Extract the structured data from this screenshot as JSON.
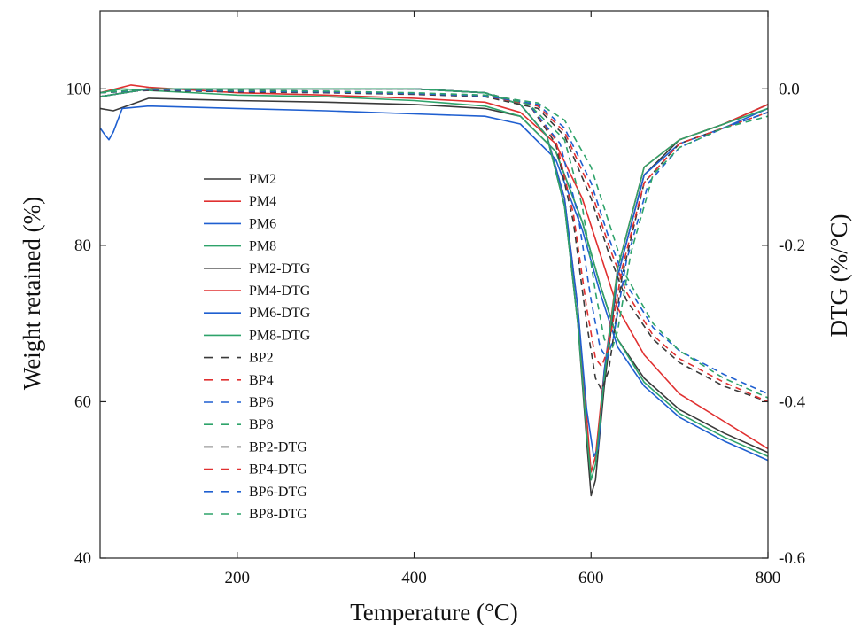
{
  "chart_data": {
    "type": "line",
    "title": "",
    "xlabel": "Temperature (°C)",
    "ylabel_left": "Weight retained (%)",
    "ylabel_right": "DTG (%/°C)",
    "xlim": [
      45,
      800
    ],
    "ylim_left": [
      40,
      110
    ],
    "ylim_right": [
      -0.6,
      0.1
    ],
    "x_ticks": [
      200,
      400,
      600,
      800
    ],
    "y_ticks_left": [
      40,
      60,
      80,
      100
    ],
    "y_ticks_right": [
      -0.6,
      -0.4,
      -0.2,
      0.0
    ],
    "y_tick_labels_right": [
      "-0.6",
      "-0.4",
      "-0.2",
      "0.0"
    ],
    "grid": false,
    "legend_position": "center-left",
    "colors": {
      "PM2": "#3a3a3a",
      "PM4": "#e03030",
      "PM6": "#1f5fd0",
      "PM8": "#2ea36a",
      "BP2": "#3a3a3a",
      "BP4": "#e03030",
      "BP6": "#1f5fd0",
      "BP8": "#2ea36a"
    },
    "series": [
      {
        "name": "PM2",
        "axis": "left",
        "style": "solid",
        "color_key": "PM2",
        "x": [
          45,
          60,
          100,
          200,
          300,
          400,
          480,
          520,
          560,
          590,
          610,
          630,
          660,
          700,
          750,
          800
        ],
        "y": [
          97.5,
          97.2,
          98.8,
          98.5,
          98.3,
          98.0,
          97.5,
          96.5,
          92,
          83,
          75,
          68,
          63,
          59,
          56,
          53.5
        ]
      },
      {
        "name": "PM4",
        "axis": "left",
        "style": "solid",
        "color_key": "PM4",
        "x": [
          45,
          80,
          100,
          200,
          300,
          400,
          480,
          520,
          560,
          590,
          610,
          630,
          660,
          700,
          750,
          800
        ],
        "y": [
          99.5,
          100.5,
          100.2,
          99.5,
          99.2,
          98.8,
          98.3,
          97,
          93,
          86,
          79,
          72,
          66,
          61,
          57.5,
          54
        ]
      },
      {
        "name": "PM6",
        "axis": "left",
        "style": "solid",
        "color_key": "PM6",
        "x": [
          45,
          50,
          55,
          60,
          70,
          100,
          200,
          300,
          400,
          480,
          520,
          560,
          590,
          610,
          630,
          660,
          700,
          750,
          800
        ],
        "y": [
          95,
          94.2,
          93.5,
          94.5,
          97.5,
          97.8,
          97.5,
          97.2,
          96.8,
          96.5,
          95.5,
          91,
          82,
          74,
          67,
          62,
          58,
          55,
          52.5
        ]
      },
      {
        "name": "PM8",
        "axis": "left",
        "style": "solid",
        "color_key": "PM8",
        "x": [
          45,
          70,
          100,
          200,
          300,
          400,
          480,
          520,
          560,
          590,
          610,
          630,
          660,
          700,
          750,
          800
        ],
        "y": [
          99.5,
          100,
          99.8,
          99.2,
          99.0,
          98.5,
          97.8,
          96.5,
          92,
          83,
          75,
          68,
          62.5,
          58.5,
          55.5,
          53
        ]
      },
      {
        "name": "PM2-DTG",
        "axis": "right",
        "style": "solid",
        "color_key": "PM2",
        "x": [
          45,
          100,
          200,
          300,
          400,
          480,
          520,
          550,
          570,
          585,
          595,
          600,
          605,
          615,
          630,
          660,
          700,
          750,
          800
        ],
        "y": [
          -0.01,
          0.0,
          0.0,
          0.0,
          0.0,
          -0.005,
          -0.02,
          -0.06,
          -0.15,
          -0.3,
          -0.45,
          -0.52,
          -0.5,
          -0.38,
          -0.24,
          -0.11,
          -0.065,
          -0.045,
          -0.02
        ]
      },
      {
        "name": "PM4-DTG",
        "axis": "right",
        "style": "solid",
        "color_key": "PM4",
        "x": [
          45,
          100,
          200,
          300,
          400,
          480,
          520,
          550,
          570,
          585,
          595,
          600,
          605,
          615,
          630,
          660,
          700,
          750,
          800
        ],
        "y": [
          -0.01,
          0.0,
          0.0,
          0.0,
          0.0,
          -0.005,
          -0.02,
          -0.06,
          -0.14,
          -0.28,
          -0.42,
          -0.49,
          -0.47,
          -0.36,
          -0.23,
          -0.1,
          -0.065,
          -0.045,
          -0.02
        ]
      },
      {
        "name": "PM6-DTG",
        "axis": "right",
        "style": "solid",
        "color_key": "PM6",
        "x": [
          45,
          100,
          200,
          300,
          400,
          480,
          520,
          550,
          570,
          585,
          595,
          603,
          608,
          615,
          630,
          660,
          700,
          750,
          800
        ],
        "y": [
          -0.01,
          0.0,
          0.0,
          0.0,
          0.0,
          -0.005,
          -0.02,
          -0.06,
          -0.14,
          -0.28,
          -0.41,
          -0.47,
          -0.46,
          -0.36,
          -0.24,
          -0.11,
          -0.07,
          -0.05,
          -0.025
        ]
      },
      {
        "name": "PM8-DTG",
        "axis": "right",
        "style": "solid",
        "color_key": "PM8",
        "x": [
          45,
          100,
          200,
          300,
          400,
          480,
          520,
          550,
          570,
          585,
          595,
          600,
          605,
          615,
          630,
          660,
          700,
          750,
          800
        ],
        "y": [
          -0.01,
          0.0,
          0.0,
          0.0,
          0.0,
          -0.005,
          -0.02,
          -0.06,
          -0.15,
          -0.3,
          -0.44,
          -0.5,
          -0.48,
          -0.37,
          -0.23,
          -0.1,
          -0.065,
          -0.045,
          -0.025
        ]
      },
      {
        "name": "BP2",
        "axis": "left",
        "style": "dashed",
        "color_key": "BP2",
        "x": [
          45,
          100,
          200,
          300,
          400,
          480,
          540,
          570,
          600,
          620,
          640,
          670,
          700,
          750,
          800
        ],
        "y": [
          99.5,
          99.8,
          99.6,
          99.5,
          99.3,
          99.0,
          97.5,
          94,
          86,
          79,
          73,
          68,
          65,
          62,
          60
        ]
      },
      {
        "name": "BP4",
        "axis": "left",
        "style": "dashed",
        "color_key": "BP4",
        "x": [
          45,
          100,
          200,
          300,
          400,
          480,
          540,
          570,
          600,
          620,
          640,
          670,
          700,
          750,
          800
        ],
        "y": [
          99.5,
          99.9,
          99.7,
          99.6,
          99.4,
          99.1,
          97.8,
          94.5,
          87,
          80,
          74,
          68.5,
          65.5,
          62.5,
          60
        ]
      },
      {
        "name": "BP6",
        "axis": "left",
        "style": "dashed",
        "color_key": "BP6",
        "x": [
          45,
          100,
          200,
          300,
          400,
          480,
          540,
          570,
          600,
          620,
          640,
          670,
          700,
          750,
          800
        ],
        "y": [
          99.5,
          99.9,
          99.7,
          99.6,
          99.4,
          99.1,
          98,
          95,
          88,
          81,
          75,
          69.5,
          66.5,
          63.5,
          61
        ]
      },
      {
        "name": "BP8",
        "axis": "left",
        "style": "dashed",
        "color_key": "BP8",
        "x": [
          45,
          100,
          200,
          300,
          400,
          480,
          540,
          570,
          600,
          620,
          640,
          670,
          700,
          750,
          800
        ],
        "y": [
          99.5,
          100,
          99.8,
          99.7,
          99.5,
          99.2,
          98.2,
          96,
          90,
          83,
          76,
          70,
          66.5,
          63,
          60.5
        ]
      },
      {
        "name": "BP2-DTG",
        "axis": "right",
        "style": "dashed",
        "color_key": "BP2",
        "x": [
          45,
          100,
          200,
          300,
          400,
          480,
          530,
          560,
          580,
          595,
          605,
          612,
          620,
          635,
          660,
          700,
          750,
          800
        ],
        "y": [
          -0.01,
          0.0,
          0.0,
          0.0,
          0.0,
          -0.005,
          -0.02,
          -0.07,
          -0.17,
          -0.3,
          -0.37,
          -0.385,
          -0.36,
          -0.24,
          -0.12,
          -0.07,
          -0.05,
          -0.03
        ]
      },
      {
        "name": "BP4-DTG",
        "axis": "right",
        "style": "dashed",
        "color_key": "BP4",
        "x": [
          45,
          100,
          200,
          300,
          400,
          480,
          530,
          560,
          580,
          595,
          605,
          612,
          620,
          635,
          660,
          700,
          750,
          800
        ],
        "y": [
          -0.01,
          0.0,
          0.0,
          0.0,
          0.0,
          -0.005,
          -0.02,
          -0.065,
          -0.16,
          -0.28,
          -0.345,
          -0.355,
          -0.33,
          -0.23,
          -0.12,
          -0.07,
          -0.05,
          -0.03
        ]
      },
      {
        "name": "BP6-DTG",
        "axis": "right",
        "style": "dashed",
        "color_key": "BP6",
        "x": [
          45,
          100,
          200,
          300,
          400,
          480,
          530,
          565,
          585,
          600,
          610,
          618,
          625,
          640,
          665,
          700,
          750,
          800
        ],
        "y": [
          -0.01,
          0.0,
          0.0,
          0.0,
          0.0,
          -0.005,
          -0.02,
          -0.07,
          -0.16,
          -0.27,
          -0.33,
          -0.345,
          -0.32,
          -0.22,
          -0.12,
          -0.075,
          -0.05,
          -0.03
        ]
      },
      {
        "name": "BP8-DTG",
        "axis": "right",
        "style": "dashed",
        "color_key": "BP8",
        "x": [
          45,
          100,
          200,
          300,
          400,
          480,
          530,
          570,
          590,
          605,
          615,
          623,
          630,
          645,
          670,
          700,
          750,
          800
        ],
        "y": [
          -0.01,
          0.0,
          0.0,
          0.0,
          0.0,
          -0.005,
          -0.02,
          -0.065,
          -0.15,
          -0.26,
          -0.32,
          -0.335,
          -0.31,
          -0.21,
          -0.11,
          -0.075,
          -0.05,
          -0.035
        ]
      }
    ]
  }
}
